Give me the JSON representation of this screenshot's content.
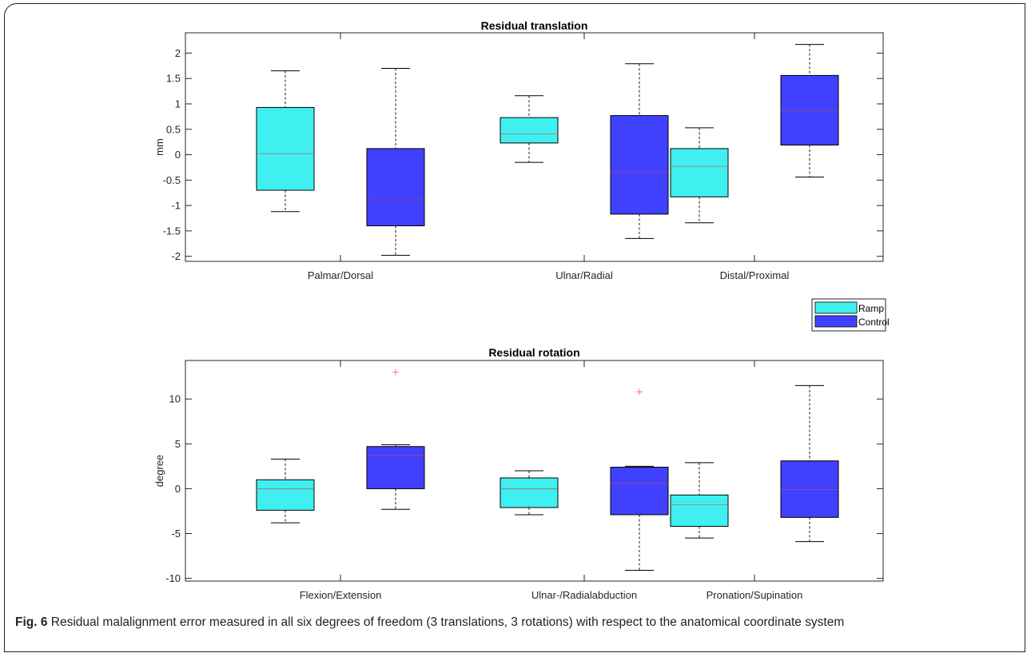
{
  "caption": {
    "label": "Fig. 6",
    "text": "Residual malalignment error measured in all six degrees of freedom (3 translations, 3 rotations) with respect to the anatomical coordinate system"
  },
  "legend": {
    "entries": [
      {
        "name": "Ramp",
        "color": "#40f0f0"
      },
      {
        "name": "Control",
        "color": "#4040ff"
      }
    ],
    "placement": "right, between panels"
  },
  "chart_data": [
    {
      "type": "box",
      "title": "Residual translation",
      "xlabel": "",
      "ylabel": "mm",
      "ylim": [
        -2.1,
        2.4
      ],
      "yticks": [
        -2,
        -1.5,
        -1,
        -0.5,
        0,
        0.5,
        1,
        1.5,
        2
      ],
      "yticklabels": [
        "-2",
        "-1.5",
        "-1",
        "-0.5",
        "0",
        "0.5",
        "1",
        "1.5",
        "2"
      ],
      "categories": [
        "Palmar/Dorsal",
        "Ulnar/Radial",
        "Distal/Proximal"
      ],
      "series": [
        {
          "name": "Ramp",
          "color": "#40f0f0",
          "boxes": [
            {
              "min": -1.12,
              "q1": -0.7,
              "median": 0.02,
              "q3": 0.93,
              "max": 1.65,
              "outliers": []
            },
            {
              "min": -0.15,
              "q1": 0.23,
              "median": 0.41,
              "q3": 0.73,
              "max": 1.16,
              "outliers": []
            },
            {
              "min": -1.34,
              "q1": -0.83,
              "median": -0.23,
              "q3": 0.12,
              "max": 0.53,
              "outliers": []
            }
          ]
        },
        {
          "name": "Control",
          "color": "#4040ff",
          "boxes": [
            {
              "min": -1.98,
              "q1": -1.4,
              "median": -0.89,
              "q3": 0.12,
              "max": 1.7,
              "outliers": []
            },
            {
              "min": -1.65,
              "q1": -1.17,
              "median": -0.35,
              "q3": 0.77,
              "max": 1.79,
              "outliers": []
            },
            {
              "min": -0.44,
              "q1": 0.19,
              "median": 0.86,
              "q3": 1.56,
              "max": 2.17,
              "outliers": []
            }
          ]
        }
      ]
    },
    {
      "type": "box",
      "title": "Residual rotation",
      "xlabel": "",
      "ylabel": "degree",
      "ylim": [
        -10.3,
        14.3
      ],
      "yticks": [
        -10,
        -5,
        0,
        5,
        10
      ],
      "yticklabels": [
        "-10",
        "-5",
        "0",
        "5",
        "10"
      ],
      "categories": [
        "Flexion/Extension",
        "Ulnar-/Radialabduction",
        "Pronation/Supination"
      ],
      "series": [
        {
          "name": "Ramp",
          "color": "#40f0f0",
          "boxes": [
            {
              "min": -3.8,
              "q1": -2.4,
              "median": 0.0,
              "q3": 1.0,
              "max": 3.3,
              "outliers": []
            },
            {
              "min": -2.9,
              "q1": -2.1,
              "median": 0.0,
              "q3": 1.2,
              "max": 2.0,
              "outliers": []
            },
            {
              "min": -5.5,
              "q1": -4.2,
              "median": -1.8,
              "q3": -0.7,
              "max": 2.9,
              "outliers": []
            }
          ]
        },
        {
          "name": "Control",
          "color": "#4040ff",
          "boxes": [
            {
              "min": -2.3,
              "q1": 0.0,
              "median": 3.7,
              "q3": 4.7,
              "max": 4.9,
              "outliers": [
                13.0
              ]
            },
            {
              "min": -9.1,
              "q1": -2.9,
              "median": 0.6,
              "q3": 2.4,
              "max": 2.5,
              "outliers": [
                10.8
              ]
            },
            {
              "min": -5.9,
              "q1": -3.2,
              "median": -0.1,
              "q3": 3.1,
              "max": 11.5,
              "outliers": []
            }
          ]
        }
      ]
    }
  ]
}
